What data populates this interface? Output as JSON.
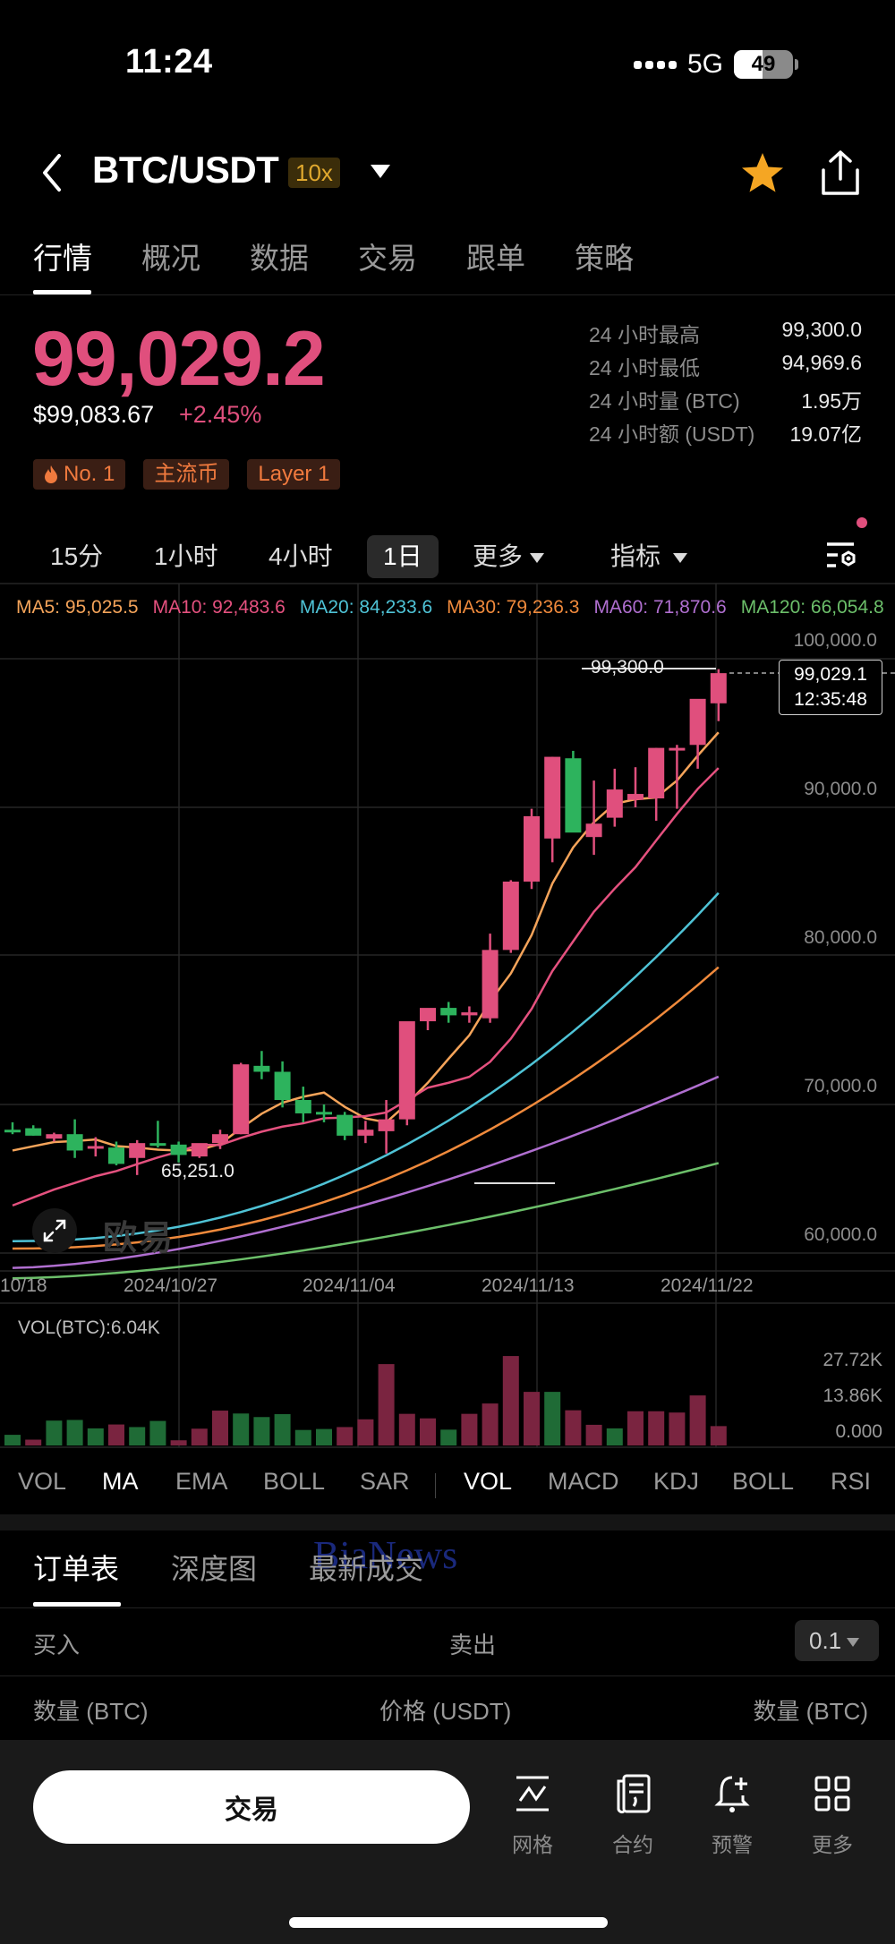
{
  "status_bar": {
    "time": "11:24",
    "network": "5G",
    "battery": "49"
  },
  "header": {
    "pair": "BTC/USDT",
    "leverage": "10x"
  },
  "tabs": [
    {
      "label": "行情",
      "active": true
    },
    {
      "label": "概况"
    },
    {
      "label": "数据"
    },
    {
      "label": "交易"
    },
    {
      "label": "跟单"
    },
    {
      "label": "策略"
    }
  ],
  "price": {
    "last": "99,029.2",
    "usd": "$99,083.67",
    "change": "+2.45%",
    "badges": [
      "No. 1",
      "主流币",
      "Layer 1"
    ]
  },
  "stats": [
    {
      "label": "24 小时最高",
      "value": "99,300.0"
    },
    {
      "label": "24 小时最低",
      "value": "94,969.6"
    },
    {
      "label": "24 小时量 (BTC)",
      "value": "1.95万"
    },
    {
      "label": "24 小时额 (USDT)",
      "value": "19.07亿"
    }
  ],
  "timeframes": [
    {
      "label": "15分"
    },
    {
      "label": "1小时"
    },
    {
      "label": "4小时"
    },
    {
      "label": "1日",
      "active": true
    },
    {
      "label": "更多"
    },
    {
      "label": "指标"
    }
  ],
  "ma_legend": [
    {
      "label": "MA5: 95,025.5",
      "color": "#f5a45a"
    },
    {
      "label": "MA10: 92,483.6",
      "color": "#e5517f"
    },
    {
      "label": "MA20: 84,233.6",
      "color": "#4fc3d6"
    },
    {
      "label": "MA30: 79,236.3",
      "color": "#f08a3c"
    },
    {
      "label": "MA60: 71,870.6",
      "color": "#b06fd0"
    },
    {
      "label": "MA120: 66,054.8",
      "color": "#6cbf6a"
    }
  ],
  "chart_labels": {
    "high_marker": "99,300.0",
    "low_marker": "65,251.0",
    "current_price": "99,029.1",
    "countdown": "12:35:48",
    "watermark": "欧易",
    "vol_title": "VOL(BTC):6.04K",
    "vol_axis": [
      "27.72K",
      "13.86K",
      "0.000"
    ]
  },
  "indicators_main": [
    {
      "label": "VOL"
    },
    {
      "label": "MA",
      "active": true
    },
    {
      "label": "EMA"
    },
    {
      "label": "BOLL"
    },
    {
      "label": "SAR"
    }
  ],
  "indicators_sub": [
    {
      "label": "VOL",
      "active": true
    },
    {
      "label": "MACD"
    },
    {
      "label": "KDJ"
    },
    {
      "label": "BOLL"
    },
    {
      "label": "RSI"
    }
  ],
  "orderbook": {
    "tabs": [
      {
        "label": "订单表",
        "active": true
      },
      {
        "label": "深度图"
      },
      {
        "label": "最新成交"
      }
    ],
    "overlay_watermark": "BiaNews",
    "buy_label": "买入",
    "sell_label": "卖出",
    "depth_value": "0.1",
    "columns": [
      "数量 (BTC)",
      "价格 (USDT)",
      "数量 (BTC)"
    ]
  },
  "bottom_bar": {
    "trade_button": "交易",
    "items": [
      {
        "label": "网格",
        "icon": "grid-strategy-icon"
      },
      {
        "label": "合约",
        "icon": "contract-icon"
      },
      {
        "label": "预警",
        "icon": "bell-plus-icon"
      },
      {
        "label": "更多",
        "icon": "apps-icon"
      }
    ]
  },
  "colors": {
    "up": "#e04f7d",
    "down": "#2db35d",
    "vol_up": "#7a2440",
    "vol_down": "#1f6b36",
    "accent_star": "#f5a623"
  },
  "chart_data": [
    {
      "type": "candlestick",
      "title": "BTC/USDT 1日",
      "ylim": [
        58000,
        101500
      ],
      "y_ticks": [
        "100,000.0",
        "90,000.0",
        "80,000.0",
        "70,000.0",
        "60,000.0"
      ],
      "x_ticks": [
        "10/18",
        "2024/10/27",
        "2024/11/04",
        "2024/11/13",
        "2024/11/22"
      ],
      "grid": true,
      "ohlc": [
        [
          68300,
          68800,
          68000,
          68200
        ],
        [
          68400,
          68600,
          67900,
          67900
        ],
        [
          67700,
          68100,
          67500,
          68000
        ],
        [
          68000,
          69000,
          66400,
          66900
        ],
        [
          67200,
          67800,
          66500,
          67200
        ],
        [
          67100,
          67500,
          65900,
          66000
        ],
        [
          66400,
          67600,
          65251,
          67400
        ],
        [
          67400,
          68900,
          67100,
          67300
        ],
        [
          67300,
          67500,
          66100,
          66600
        ],
        [
          66500,
          67300,
          66400,
          67400
        ],
        [
          67400,
          68300,
          67000,
          68000
        ],
        [
          68000,
          72800,
          68000,
          72700
        ],
        [
          72600,
          73600,
          71700,
          72200
        ],
        [
          72200,
          72900,
          69800,
          70300
        ],
        [
          70300,
          71200,
          68800,
          69400
        ],
        [
          69500,
          70000,
          68800,
          69400
        ],
        [
          69300,
          69500,
          67600,
          67900
        ],
        [
          67900,
          68900,
          67400,
          68300
        ],
        [
          68200,
          70300,
          66700,
          69000
        ],
        [
          69000,
          75300,
          68600,
          75600
        ],
        [
          75600,
          76400,
          75000,
          76500
        ],
        [
          76500,
          76900,
          75500,
          76000
        ],
        [
          76000,
          76600,
          75500,
          76200
        ],
        [
          75800,
          81500,
          75500,
          80400
        ],
        [
          80400,
          85100,
          80200,
          85000
        ],
        [
          85000,
          89900,
          84500,
          89400
        ],
        [
          87900,
          93400,
          86300,
          93400
        ],
        [
          93300,
          93800,
          91500,
          88300
        ],
        [
          88000,
          91800,
          86800,
          88900
        ],
        [
          89300,
          92600,
          88700,
          91200
        ],
        [
          90500,
          92700,
          90000,
          90900
        ],
        [
          90600,
          94000,
          89100,
          94000
        ],
        [
          94000,
          94200,
          89900,
          94000
        ],
        [
          94200,
          96700,
          92600,
          97300
        ],
        [
          97000,
          99300,
          95800,
          99029
        ]
      ],
      "series": [
        {
          "name": "MA5",
          "color": "#f5a45a",
          "last": 95025.5
        },
        {
          "name": "MA10",
          "color": "#e5517f",
          "last": 92483.6
        },
        {
          "name": "MA20",
          "color": "#4fc3d6",
          "last": 84233.6
        },
        {
          "name": "MA30",
          "color": "#f08a3c",
          "last": 79236.3
        },
        {
          "name": "MA60",
          "color": "#b06fd0",
          "last": 71870.6
        },
        {
          "name": "MA120",
          "color": "#6cbf6a",
          "last": 66054.8
        }
      ],
      "annotations": {
        "high": 99300.0,
        "low": 65251.0,
        "current": 99029.1
      }
    },
    {
      "type": "bar",
      "title": "VOL(BTC):6.04K",
      "ylim": [
        0,
        27720
      ],
      "y_ticks": [
        "27.72K",
        "13.86K",
        "0.000"
      ],
      "values": [
        3300,
        1800,
        7700,
        7900,
        5300,
        6500,
        5700,
        7600,
        1600,
        5200,
        10800,
        9900,
        8800,
        9700,
        4800,
        5100,
        5700,
        8100,
        25200,
        9800,
        8400,
        4900,
        9800,
        13000,
        27700,
        16600,
        16600,
        10900,
        6400,
        5300,
        10600,
        10600,
        10200,
        15500,
        6000
      ],
      "directions": [
        "down",
        "up",
        "down",
        "down",
        "down",
        "up",
        "down",
        "down",
        "up",
        "up",
        "up",
        "down",
        "down",
        "down",
        "down",
        "down",
        "up",
        "up",
        "up",
        "up",
        "up",
        "down",
        "up",
        "up",
        "up",
        "up",
        "down",
        "up",
        "up",
        "down",
        "up",
        "up",
        "up",
        "up",
        "up"
      ]
    }
  ]
}
